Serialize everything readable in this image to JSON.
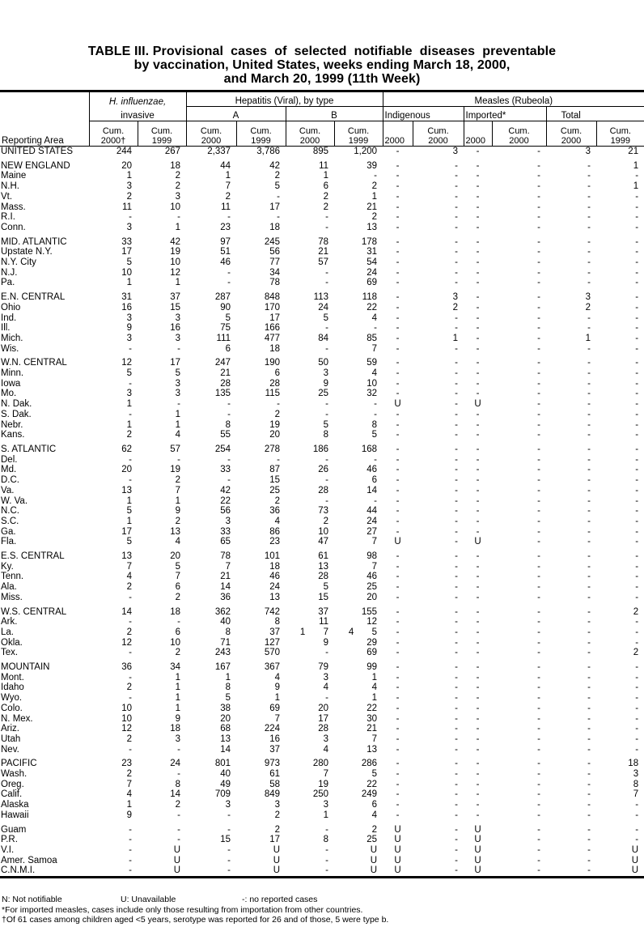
{
  "title": {
    "line1": "TABLE III. Provisional  cases  of  selected  notifiable  diseases  preventable",
    "line2": "by vaccination, United States, weeks ending March 18, 2000,",
    "line3": "and March 20, 1999 (11th Week)"
  },
  "header": {
    "reporting_area": "Reporting Area",
    "hflu": "H. influenzae,",
    "hflu_sub": "invasive",
    "hepatitis": "Hepatitis (Viral), by type",
    "hep_a": "A",
    "hep_b": "B",
    "measles": "Measles (Rubeola)",
    "indigenous": "Indigenous",
    "imported": "Imported*",
    "total": "Total",
    "cols": [
      "Cum. 2000†",
      "Cum. 1999",
      "Cum. 2000",
      "Cum. 1999",
      "Cum. 2000",
      "Cum. 1999",
      "2000",
      "Cum. 2000",
      "2000",
      "Cum. 2000",
      "Cum. 2000",
      "Cum. 1999"
    ]
  },
  "rows": [
    {
      "g": 1,
      "v": [
        "UNITED STATES",
        "244",
        "267",
        "2,337",
        "3,786",
        "895",
        "1,200",
        "-",
        "3",
        "-",
        "-",
        "3",
        "21"
      ]
    },
    {
      "g": 1,
      "v": [
        "NEW ENGLAND",
        "20",
        "18",
        "44",
        "42",
        "11",
        "39",
        "-",
        "-",
        "-",
        "-",
        "-",
        "1"
      ]
    },
    {
      "v": [
        "Maine",
        "1",
        "2",
        "1",
        "2",
        "1",
        "-",
        "-",
        "-",
        "-",
        "-",
        "-",
        "-"
      ]
    },
    {
      "v": [
        "N.H.",
        "3",
        "2",
        "7",
        "5",
        "6",
        "2",
        "-",
        "-",
        "-",
        "-",
        "-",
        "1"
      ]
    },
    {
      "v": [
        "Vt.",
        "2",
        "3",
        "2",
        "-",
        "2",
        "1",
        "-",
        "-",
        "-",
        "-",
        "-",
        "-"
      ]
    },
    {
      "v": [
        "Mass.",
        "11",
        "10",
        "11",
        "17",
        "2",
        "21",
        "-",
        "-",
        "-",
        "-",
        "-",
        "-"
      ]
    },
    {
      "v": [
        "R.I.",
        "-",
        "-",
        "-",
        "-",
        "-",
        "2",
        "-",
        "-",
        "-",
        "-",
        "-",
        "-"
      ]
    },
    {
      "v": [
        "Conn.",
        "3",
        "1",
        "23",
        "18",
        "-",
        "13",
        "-",
        "-",
        "-",
        "-",
        "-",
        "-"
      ]
    },
    {
      "g": 1,
      "v": [
        "MID. ATLANTIC",
        "33",
        "42",
        "97",
        "245",
        "78",
        "178",
        "-",
        "-",
        "-",
        "-",
        "-",
        "-"
      ]
    },
    {
      "v": [
        "Upstate N.Y.",
        "17",
        "19",
        "51",
        "56",
        "21",
        "31",
        "-",
        "-",
        "-",
        "-",
        "-",
        "-"
      ]
    },
    {
      "v": [
        "N.Y. City",
        "5",
        "10",
        "46",
        "77",
        "57",
        "54",
        "-",
        "-",
        "-",
        "-",
        "-",
        "-"
      ]
    },
    {
      "v": [
        "N.J.",
        "10",
        "12",
        "-",
        "34",
        "-",
        "24",
        "-",
        "-",
        "-",
        "-",
        "-",
        "-"
      ]
    },
    {
      "v": [
        "Pa.",
        "1",
        "1",
        "-",
        "78",
        "-",
        "69",
        "-",
        "-",
        "-",
        "-",
        "-",
        "-"
      ]
    },
    {
      "g": 1,
      "v": [
        "E.N. CENTRAL",
        "31",
        "37",
        "287",
        "848",
        "113",
        "118",
        "-",
        "3",
        "-",
        "-",
        "3",
        "-"
      ]
    },
    {
      "v": [
        "Ohio",
        "16",
        "15",
        "90",
        "170",
        "24",
        "22",
        "-",
        "2",
        "-",
        "-",
        "2",
        "-"
      ]
    },
    {
      "v": [
        "Ind.",
        "3",
        "3",
        "5",
        "17",
        "5",
        "4",
        "-",
        "-",
        "-",
        "-",
        "-",
        "-"
      ]
    },
    {
      "v": [
        "Ill.",
        "9",
        "16",
        "75",
        "166",
        "-",
        "-",
        "-",
        "-",
        "-",
        "-",
        "-",
        "-"
      ]
    },
    {
      "v": [
        "Mich.",
        "3",
        "3",
        "111",
        "477",
        "84",
        "85",
        "-",
        "1",
        "-",
        "-",
        "1",
        "-"
      ]
    },
    {
      "v": [
        "Wis.",
        "-",
        "-",
        "6",
        "18",
        "-",
        "7",
        "-",
        "-",
        "-",
        "-",
        "-",
        "-"
      ]
    },
    {
      "g": 1,
      "v": [
        "W.N. CENTRAL",
        "12",
        "17",
        "247",
        "190",
        "50",
        "59",
        "-",
        "-",
        "-",
        "-",
        "-",
        "-"
      ]
    },
    {
      "v": [
        "Minn.",
        "5",
        "5",
        "21",
        "6",
        "3",
        "4",
        "-",
        "-",
        "-",
        "-",
        "-",
        "-"
      ]
    },
    {
      "v": [
        "Iowa",
        "-",
        "3",
        "28",
        "28",
        "9",
        "10",
        "-",
        "-",
        "-",
        "-",
        "-",
        "-"
      ]
    },
    {
      "v": [
        "Mo.",
        "3",
        "3",
        "135",
        "115",
        "25",
        "32",
        "-",
        "-",
        "-",
        "-",
        "-",
        "-"
      ]
    },
    {
      "v": [
        "N. Dak.",
        "1",
        "-",
        "-",
        "-",
        "-",
        "-",
        "U",
        "-",
        "U",
        "-",
        "-",
        "-"
      ]
    },
    {
      "v": [
        "S. Dak.",
        "-",
        "1",
        "-",
        "2",
        "-",
        "-",
        "-",
        "-",
        "-",
        "-",
        "-",
        "-"
      ]
    },
    {
      "v": [
        "Nebr.",
        "1",
        "1",
        "8",
        "19",
        "5",
        "8",
        "-",
        "-",
        "-",
        "-",
        "-",
        "-"
      ]
    },
    {
      "v": [
        "Kans.",
        "2",
        "4",
        "55",
        "20",
        "8",
        "5",
        "-",
        "-",
        "-",
        "-",
        "-",
        "-"
      ]
    },
    {
      "g": 1,
      "v": [
        "S. ATLANTIC",
        "62",
        "57",
        "254",
        "278",
        "186",
        "168",
        "-",
        "-",
        "-",
        "-",
        "-",
        "-"
      ]
    },
    {
      "v": [
        "Del.",
        "-",
        "-",
        "-",
        "-",
        "-",
        "-",
        "-",
        "-",
        "-",
        "-",
        "-",
        "-"
      ]
    },
    {
      "v": [
        "Md.",
        "20",
        "19",
        "33",
        "87",
        "26",
        "46",
        "-",
        "-",
        "-",
        "-",
        "-",
        "-"
      ]
    },
    {
      "v": [
        "D.C.",
        "-",
        "2",
        "-",
        "15",
        "-",
        "6",
        "-",
        "-",
        "-",
        "-",
        "-",
        "-"
      ]
    },
    {
      "v": [
        "Va.",
        "13",
        "7",
        "42",
        "25",
        "28",
        "14",
        "-",
        "-",
        "-",
        "-",
        "-",
        "-"
      ]
    },
    {
      "v": [
        "W. Va.",
        "1",
        "1",
        "22",
        "2",
        "-",
        "-",
        "-",
        "-",
        "-",
        "-",
        "-",
        "-"
      ]
    },
    {
      "v": [
        "N.C.",
        "5",
        "9",
        "56",
        "36",
        "73",
        "44",
        "-",
        "-",
        "-",
        "-",
        "-",
        "-"
      ]
    },
    {
      "v": [
        "S.C.",
        "1",
        "2",
        "3",
        "4",
        "2",
        "24",
        "-",
        "-",
        "-",
        "-",
        "-",
        "-"
      ]
    },
    {
      "v": [
        "Ga.",
        "17",
        "13",
        "33",
        "86",
        "10",
        "27",
        "-",
        "-",
        "-",
        "-",
        "-",
        "-"
      ]
    },
    {
      "v": [
        "Fla.",
        "5",
        "4",
        "65",
        "23",
        "47",
        "7",
        "U",
        "-",
        "U",
        "-",
        "-",
        "-"
      ]
    },
    {
      "g": 1,
      "v": [
        "E.S. CENTRAL",
        "13",
        "20",
        "78",
        "101",
        "61",
        "98",
        "-",
        "-",
        "-",
        "-",
        "-",
        "-"
      ]
    },
    {
      "v": [
        "Ky.",
        "7",
        "5",
        "7",
        "18",
        "13",
        "7",
        "-",
        "-",
        "-",
        "-",
        "-",
        "-"
      ]
    },
    {
      "v": [
        "Tenn.",
        "4",
        "7",
        "21",
        "46",
        "28",
        "46",
        "-",
        "-",
        "-",
        "-",
        "-",
        "-"
      ]
    },
    {
      "v": [
        "Ala.",
        "2",
        "6",
        "14",
        "24",
        "5",
        "25",
        "-",
        "-",
        "-",
        "-",
        "-",
        "-"
      ]
    },
    {
      "v": [
        "Miss.",
        "-",
        "2",
        "36",
        "13",
        "15",
        "20",
        "-",
        "-",
        "-",
        "-",
        "-",
        "-"
      ]
    },
    {
      "g": 1,
      "v": [
        "W.S. CENTRAL",
        "14",
        "18",
        "362",
        "742",
        "37",
        "155",
        "-",
        "-",
        "-",
        "-",
        "-",
        "2"
      ]
    },
    {
      "v": [
        "Ark.",
        "-",
        "-",
        "40",
        "8",
        "11",
        "12",
        "-",
        "-",
        "-",
        "-",
        "-",
        "-"
      ]
    },
    {
      "v": [
        "La.",
        "2",
        "6",
        "8",
        "37",
        "1       7",
        "4       5",
        "-",
        "-",
        "-",
        "-",
        "-",
        "-"
      ]
    },
    {
      "v": [
        "Okla.",
        "12",
        "10",
        "71",
        "127",
        "9",
        "29",
        "-",
        "-",
        "-",
        "-",
        "-",
        "-"
      ]
    },
    {
      "v": [
        "Tex.",
        "-",
        "2",
        "243",
        "570",
        "-",
        "69",
        "-",
        "-",
        "-",
        "-",
        "-",
        "2"
      ]
    },
    {
      "g": 1,
      "v": [
        "MOUNTAIN",
        "36",
        "34",
        "167",
        "367",
        "79",
        "99",
        "-",
        "-",
        "-",
        "-",
        "-",
        "-"
      ]
    },
    {
      "v": [
        "Mont.",
        "-",
        "1",
        "1",
        "4",
        "3",
        "1",
        "-",
        "-",
        "-",
        "-",
        "-",
        "-"
      ]
    },
    {
      "v": [
        "Idaho",
        "2",
        "1",
        "8",
        "9",
        "4",
        "4",
        "-",
        "-",
        "-",
        "-",
        "-",
        "-"
      ]
    },
    {
      "v": [
        "Wyo.",
        "-",
        "1",
        "5",
        "1",
        "-",
        "1",
        "-",
        "-",
        "-",
        "-",
        "-",
        "-"
      ]
    },
    {
      "v": [
        "Colo.",
        "10",
        "1",
        "38",
        "69",
        "20",
        "22",
        "-",
        "-",
        "-",
        "-",
        "-",
        "-"
      ]
    },
    {
      "v": [
        "N. Mex.",
        "10",
        "9",
        "20",
        "7",
        "17",
        "30",
        "-",
        "-",
        "-",
        "-",
        "-",
        "-"
      ]
    },
    {
      "v": [
        "Ariz.",
        "12",
        "18",
        "68",
        "224",
        "28",
        "21",
        "-",
        "-",
        "-",
        "-",
        "-",
        "-"
      ]
    },
    {
      "v": [
        "Utah",
        "2",
        "3",
        "13",
        "16",
        "3",
        "7",
        "-",
        "-",
        "-",
        "-",
        "-",
        "-"
      ]
    },
    {
      "v": [
        "Nev.",
        "-",
        "-",
        "14",
        "37",
        "4",
        "13",
        "-",
        "-",
        "-",
        "-",
        "-",
        "-"
      ]
    },
    {
      "g": 1,
      "v": [
        "PACIFIC",
        "23",
        "24",
        "801",
        "973",
        "280",
        "286",
        "-",
        "-",
        "-",
        "-",
        "-",
        "18"
      ]
    },
    {
      "v": [
        "Wash.",
        "2",
        "-",
        "40",
        "61",
        "7",
        "5",
        "-",
        "-",
        "-",
        "-",
        "-",
        "3"
      ]
    },
    {
      "v": [
        "Oreg.",
        "7",
        "8",
        "49",
        "58",
        "19",
        "22",
        "-",
        "-",
        "-",
        "-",
        "-",
        "8"
      ]
    },
    {
      "v": [
        "Calif.",
        "4",
        "14",
        "709",
        "849",
        "250",
        "249",
        "-",
        "-",
        "-",
        "-",
        "-",
        "7"
      ]
    },
    {
      "v": [
        "Alaska",
        "1",
        "2",
        "3",
        "3",
        "3",
        "6",
        "-",
        "-",
        "-",
        "-",
        "-",
        "-"
      ]
    },
    {
      "v": [
        "Hawaii",
        "9",
        "-",
        "-",
        "2",
        "1",
        "4",
        "-",
        "-",
        "-",
        "-",
        "-",
        "-"
      ]
    },
    {
      "g": 1,
      "v": [
        "Guam",
        "-",
        "-",
        "-",
        "2",
        "-",
        "2",
        "U",
        "-",
        "U",
        "-",
        "-",
        "-"
      ]
    },
    {
      "v": [
        "P.R.",
        "-",
        "-",
        "15",
        "17",
        "8",
        "25",
        "U",
        "-",
        "U",
        "-",
        "-",
        "-"
      ]
    },
    {
      "v": [
        "V.I.",
        "-",
        "U",
        "-",
        "U",
        "-",
        "U",
        "U",
        "-",
        "U",
        "-",
        "-",
        "U"
      ]
    },
    {
      "v": [
        "Amer. Samoa",
        "-",
        "U",
        "-",
        "U",
        "-",
        "U",
        "U",
        "-",
        "U",
        "-",
        "-",
        "U"
      ]
    },
    {
      "v": [
        "C.N.M.I.",
        "-",
        "U",
        "-",
        "U",
        "-",
        "U",
        "U",
        "-",
        "U",
        "-",
        "-",
        "U"
      ]
    }
  ],
  "footnotes": {
    "n": "N: Not notifiable",
    "u": "U: Unavailable",
    "dash": "-: no reported cases",
    "imported": "*For imported measles, cases include only those resulting from importation from other countries.",
    "dagger": "†Of 61 cases among children aged <5 years, serotype was reported for 26 and of those, 5 were type b."
  }
}
